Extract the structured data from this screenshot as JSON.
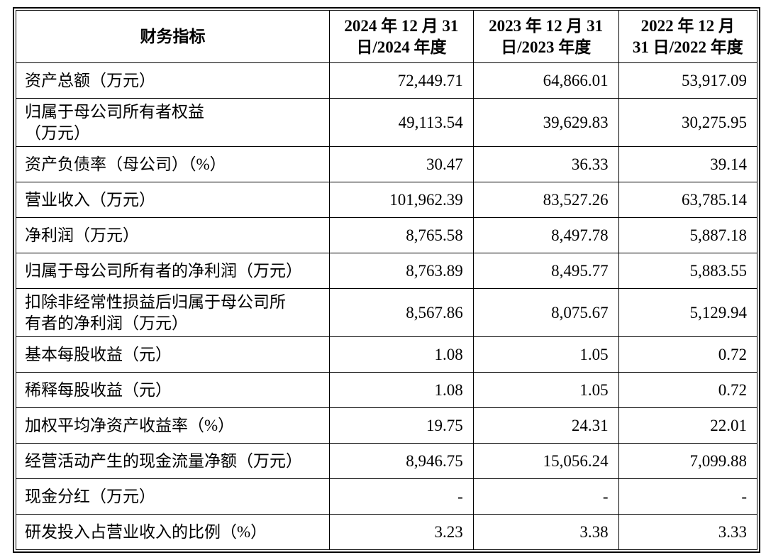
{
  "table": {
    "headers": {
      "indicator": "财务指标",
      "y2024": "2024 年 12 月 31\n日/2024 年度",
      "y2023": "2023 年 12 月 31\n日/2023 年度",
      "y2022": "2022 年 12 月\n31 日/2022 年度"
    },
    "rows": [
      {
        "label": "资产总额（万元）",
        "values": [
          "72,449.71",
          "64,866.01",
          "53,917.09"
        ]
      },
      {
        "label": "归属于母公司所有者权益\n（万元）",
        "values": [
          "49,113.54",
          "39,629.83",
          "30,275.95"
        ]
      },
      {
        "label": "资产负债率（母公司）（%）",
        "values": [
          "30.47",
          "36.33",
          "39.14"
        ]
      },
      {
        "label": "营业收入（万元）",
        "values": [
          "101,962.39",
          "83,527.26",
          "63,785.14"
        ]
      },
      {
        "label": "净利润（万元）",
        "values": [
          "8,765.58",
          "8,497.78",
          "5,887.18"
        ]
      },
      {
        "label": "归属于母公司所有者的净利润（万元）",
        "values": [
          "8,763.89",
          "8,495.77",
          "5,883.55"
        ]
      },
      {
        "label": "扣除非经常性损益后归属于母公司所\n有者的净利润（万元）",
        "values": [
          "8,567.86",
          "8,075.67",
          "5,129.94"
        ]
      },
      {
        "label": "基本每股收益（元）",
        "values": [
          "1.08",
          "1.05",
          "0.72"
        ]
      },
      {
        "label": "稀释每股收益（元）",
        "values": [
          "1.08",
          "1.05",
          "0.72"
        ]
      },
      {
        "label": "加权平均净资产收益率（%）",
        "values": [
          "19.75",
          "24.31",
          "22.01"
        ]
      },
      {
        "label": "经营活动产生的现金流量净额（万元）",
        "values": [
          "8,946.75",
          "15,056.24",
          "7,099.88"
        ]
      },
      {
        "label": "现金分红（万元）",
        "values": [
          "-",
          "-",
          "-"
        ]
      },
      {
        "label": "研发投入占营业收入的比例（%）",
        "values": [
          "3.23",
          "3.38",
          "3.33"
        ]
      }
    ]
  },
  "colors": {
    "border": "#000000",
    "text": "#000000",
    "background": "#ffffff"
  }
}
